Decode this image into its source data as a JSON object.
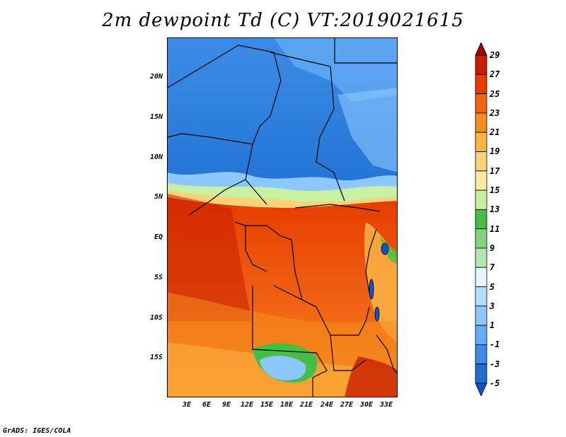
{
  "title": "2m dewpoint Td (C) VT:2019021615",
  "footer": "GrADS: IGES/COLA",
  "map": {
    "lat_labels": [
      "20N",
      "15N",
      "10N",
      "5N",
      "EQ",
      "5S",
      "10S",
      "15S"
    ],
    "lon_labels": [
      "3E",
      "6E",
      "9E",
      "12E",
      "15E",
      "18E",
      "21E",
      "24E",
      "27E",
      "30E",
      "33E"
    ]
  },
  "colorbar": {
    "levels": [
      "29",
      "27",
      "25",
      "23",
      "21",
      "19",
      "17",
      "15",
      "13",
      "11",
      "9",
      "7",
      "5",
      "3",
      "1",
      "-1",
      "-3",
      "-5"
    ],
    "colors": [
      "#a50000",
      "#c81e00",
      "#e63c00",
      "#f06414",
      "#f58c1e",
      "#fab446",
      "#fcd278",
      "#fdeaa0",
      "#c8f0a0",
      "#46be46",
      "#82d282",
      "#b4e6b4",
      "#e6f5ff",
      "#b4dcff",
      "#8cc8ff",
      "#64aaf5",
      "#3c8ce6",
      "#1e6ed2",
      "#1450c8"
    ]
  },
  "colors": {
    "cold_blue": "#1e6ed2",
    "hot_red": "#e63c00",
    "border": "#000000"
  }
}
